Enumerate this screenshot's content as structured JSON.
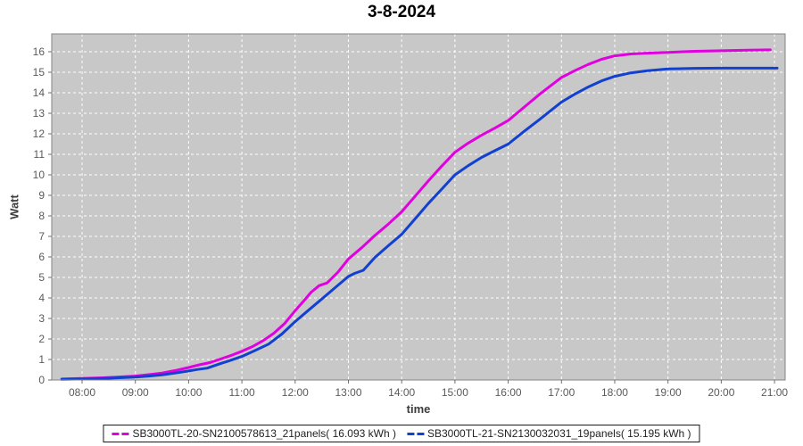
{
  "chart_data": {
    "type": "line",
    "title": "3-8-2024",
    "xlabel": "time",
    "ylabel": "Watt",
    "x_ticks": [
      {
        "h": 8,
        "label": "08:00"
      },
      {
        "h": 9,
        "label": "09:00"
      },
      {
        "h": 10,
        "label": "10:00"
      },
      {
        "h": 11,
        "label": "11:00"
      },
      {
        "h": 12,
        "label": "12:00"
      },
      {
        "h": 13,
        "label": "13:00"
      },
      {
        "h": 14,
        "label": "14:00"
      },
      {
        "h": 15,
        "label": "15:00"
      },
      {
        "h": 16,
        "label": "16:00"
      },
      {
        "h": 17,
        "label": "17:00"
      },
      {
        "h": 18,
        "label": "18:00"
      },
      {
        "h": 19,
        "label": "19:00"
      },
      {
        "h": 20,
        "label": "20:00"
      },
      {
        "h": 21,
        "label": "21:00"
      }
    ],
    "y_ticks": [
      0,
      1,
      2,
      3,
      4,
      5,
      6,
      7,
      8,
      9,
      10,
      11,
      12,
      13,
      14,
      15,
      16
    ],
    "xlim_hours": [
      7.43,
      21.2
    ],
    "ylim": [
      0,
      16.87
    ],
    "grid": {
      "line_color": "#ffffff",
      "line_style": "dashed",
      "plot_background": "#c8c8c8",
      "border_color": "#848484"
    },
    "legend_position": "bottom-center",
    "series": [
      {
        "name": "SB3000TL-20-SN2100578613_21panels( 16.093 kWh )",
        "color": "#e000e0",
        "total_kwh": 16.093,
        "points": [
          [
            7.62,
            0.05
          ],
          [
            8.0,
            0.08
          ],
          [
            8.4,
            0.11
          ],
          [
            8.8,
            0.16
          ],
          [
            9.0,
            0.19
          ],
          [
            9.25,
            0.26
          ],
          [
            9.5,
            0.34
          ],
          [
            9.75,
            0.46
          ],
          [
            10.0,
            0.61
          ],
          [
            10.2,
            0.74
          ],
          [
            10.4,
            0.85
          ],
          [
            10.6,
            1.02
          ],
          [
            10.8,
            1.2
          ],
          [
            11.0,
            1.4
          ],
          [
            11.2,
            1.63
          ],
          [
            11.4,
            1.92
          ],
          [
            11.6,
            2.28
          ],
          [
            11.8,
            2.75
          ],
          [
            12.0,
            3.38
          ],
          [
            12.15,
            3.82
          ],
          [
            12.3,
            4.28
          ],
          [
            12.45,
            4.6
          ],
          [
            12.6,
            4.73
          ],
          [
            12.8,
            5.25
          ],
          [
            13.0,
            5.9
          ],
          [
            13.25,
            6.45
          ],
          [
            13.5,
            7.05
          ],
          [
            13.75,
            7.6
          ],
          [
            14.0,
            8.2
          ],
          [
            14.25,
            8.95
          ],
          [
            14.5,
            9.7
          ],
          [
            14.75,
            10.42
          ],
          [
            15.0,
            11.1
          ],
          [
            15.25,
            11.55
          ],
          [
            15.5,
            11.93
          ],
          [
            15.75,
            12.28
          ],
          [
            16.0,
            12.65
          ],
          [
            16.3,
            13.3
          ],
          [
            16.6,
            13.95
          ],
          [
            17.0,
            14.75
          ],
          [
            17.25,
            15.08
          ],
          [
            17.5,
            15.38
          ],
          [
            17.75,
            15.63
          ],
          [
            18.0,
            15.8
          ],
          [
            18.3,
            15.89
          ],
          [
            18.6,
            15.93
          ],
          [
            19.0,
            15.97
          ],
          [
            19.5,
            16.02
          ],
          [
            20.0,
            16.05
          ],
          [
            20.5,
            16.08
          ],
          [
            20.92,
            16.09
          ]
        ]
      },
      {
        "name": "SB3000TL-21-SN2130032031_19panels( 15.195 kWh )",
        "color": "#1240d0",
        "total_kwh": 15.195,
        "points": [
          [
            7.62,
            0.03
          ],
          [
            8.0,
            0.05
          ],
          [
            8.4,
            0.08
          ],
          [
            8.8,
            0.12
          ],
          [
            9.0,
            0.14
          ],
          [
            9.25,
            0.19
          ],
          [
            9.5,
            0.25
          ],
          [
            9.75,
            0.34
          ],
          [
            10.0,
            0.44
          ],
          [
            10.15,
            0.51
          ],
          [
            10.35,
            0.58
          ],
          [
            10.6,
            0.8
          ],
          [
            10.8,
            0.97
          ],
          [
            11.0,
            1.15
          ],
          [
            11.25,
            1.44
          ],
          [
            11.5,
            1.75
          ],
          [
            11.75,
            2.24
          ],
          [
            12.0,
            2.85
          ],
          [
            12.25,
            3.4
          ],
          [
            12.5,
            3.95
          ],
          [
            12.75,
            4.5
          ],
          [
            13.0,
            5.05
          ],
          [
            13.12,
            5.2
          ],
          [
            13.28,
            5.35
          ],
          [
            13.5,
            5.98
          ],
          [
            13.75,
            6.55
          ],
          [
            14.0,
            7.1
          ],
          [
            14.25,
            7.85
          ],
          [
            14.5,
            8.6
          ],
          [
            14.75,
            9.3
          ],
          [
            15.0,
            10.0
          ],
          [
            15.25,
            10.45
          ],
          [
            15.5,
            10.85
          ],
          [
            15.75,
            11.18
          ],
          [
            16.0,
            11.5
          ],
          [
            16.3,
            12.12
          ],
          [
            16.6,
            12.72
          ],
          [
            17.0,
            13.55
          ],
          [
            17.25,
            13.93
          ],
          [
            17.5,
            14.28
          ],
          [
            17.75,
            14.58
          ],
          [
            18.0,
            14.8
          ],
          [
            18.3,
            14.97
          ],
          [
            18.6,
            15.07
          ],
          [
            19.0,
            15.16
          ],
          [
            19.5,
            15.19
          ],
          [
            20.0,
            15.2
          ],
          [
            20.5,
            15.2
          ],
          [
            21.05,
            15.2
          ]
        ]
      }
    ]
  }
}
